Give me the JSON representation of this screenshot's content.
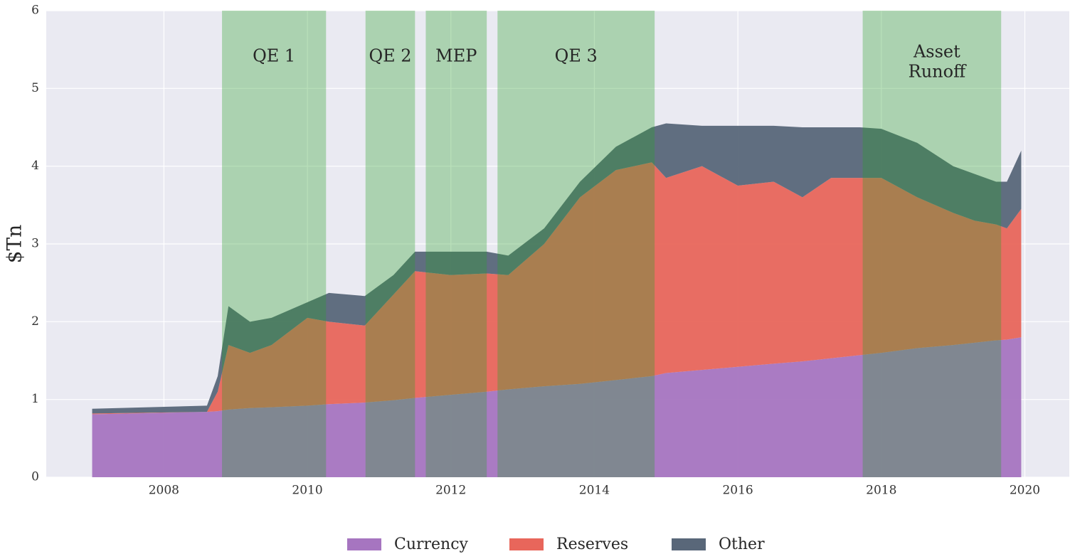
{
  "chart_data": {
    "type": "stacked_area",
    "y_label": "$Tn",
    "x": [
      2007.0,
      2008.6,
      2008.75,
      2008.9,
      2009.2,
      2009.5,
      2010.0,
      2010.3,
      2010.8,
      2011.2,
      2011.5,
      2012.0,
      2012.5,
      2012.8,
      2013.3,
      2013.8,
      2014.3,
      2014.8,
      2015.0,
      2015.5,
      2016.0,
      2016.5,
      2016.9,
      2017.3,
      2017.7,
      2018.0,
      2018.5,
      2019.0,
      2019.3,
      2019.6,
      2019.75,
      2019.95
    ],
    "series": [
      {
        "name": "Currency",
        "color": "#a675c0",
        "values": [
          0.81,
          0.84,
          0.85,
          0.87,
          0.89,
          0.9,
          0.92,
          0.94,
          0.96,
          0.99,
          1.02,
          1.06,
          1.1,
          1.13,
          1.17,
          1.2,
          1.25,
          1.3,
          1.34,
          1.38,
          1.42,
          1.46,
          1.49,
          1.53,
          1.57,
          1.6,
          1.66,
          1.7,
          1.73,
          1.76,
          1.77,
          1.8
        ]
      },
      {
        "name": "Reserves",
        "color": "#e8665b",
        "values": [
          0.01,
          0.0,
          0.25,
          0.83,
          0.71,
          0.8,
          1.13,
          1.06,
          0.99,
          1.36,
          1.63,
          1.54,
          1.52,
          1.47,
          1.83,
          2.4,
          2.7,
          2.75,
          2.51,
          2.62,
          2.33,
          2.34,
          2.11,
          2.32,
          2.28,
          2.25,
          1.94,
          1.7,
          1.57,
          1.49,
          1.43,
          1.65
        ]
      },
      {
        "name": "Other",
        "color": "#596779",
        "values": [
          0.06,
          0.08,
          0.2,
          0.5,
          0.4,
          0.35,
          0.2,
          0.37,
          0.38,
          0.25,
          0.25,
          0.3,
          0.28,
          0.25,
          0.2,
          0.2,
          0.3,
          0.45,
          0.7,
          0.52,
          0.77,
          0.72,
          0.9,
          0.65,
          0.65,
          0.63,
          0.7,
          0.6,
          0.6,
          0.55,
          0.6,
          0.75
        ]
      }
    ],
    "periods": [
      {
        "label": [
          "QE 1"
        ],
        "x_range": [
          2008.81,
          2010.26
        ]
      },
      {
        "label": [
          "QE 2"
        ],
        "x_range": [
          2010.81,
          2011.5
        ]
      },
      {
        "label": [
          "MEP"
        ],
        "x_range": [
          2011.65,
          2012.5
        ]
      },
      {
        "label": [
          "QE 3"
        ],
        "x_range": [
          2012.65,
          2014.84
        ]
      },
      {
        "label": [
          "Asset",
          "Runoff"
        ],
        "x_range": [
          2017.74,
          2019.67
        ]
      }
    ],
    "period_color": "#2ca02c",
    "xlim": [
      2006.36,
      2020.62
    ],
    "xticks": [
      2008,
      2010,
      2012,
      2014,
      2016,
      2018,
      2020
    ],
    "ylim": [
      0,
      6
    ],
    "yticks": [
      0,
      1,
      2,
      3,
      4,
      5,
      6
    ],
    "grid": true,
    "legend": "bottom"
  }
}
